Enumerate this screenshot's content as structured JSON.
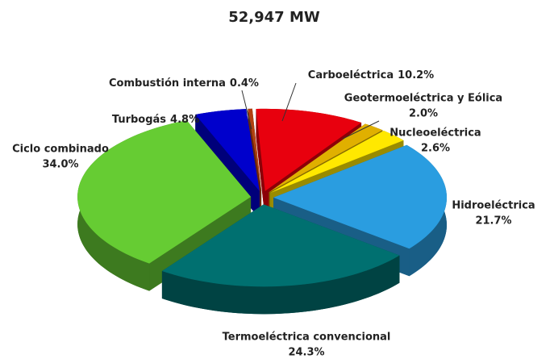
{
  "chart_data": {
    "type": "pie",
    "title": "52,947 MW",
    "categories": [
      "Carboeléctrica",
      "Geotermoeléctrica y Eólica",
      "Nucleoeléctrica",
      "Hidroeléctrica",
      "Termoeléctrica convencional",
      "Ciclo combinado",
      "Turbogás",
      "Combustión interna"
    ],
    "values": [
      10.2,
      2.0,
      2.6,
      21.7,
      24.3,
      34.0,
      4.8,
      0.4
    ],
    "value_labels": [
      "10.2%",
      "2.0%",
      "2.6%",
      "21.7%",
      "24.3%",
      "34.0%",
      "4.8%",
      "0.4%"
    ],
    "colors": [
      "#e8000e",
      "#e0b000",
      "#ffe800",
      "#2a9de0",
      "#007070",
      "#66cc33",
      "#0000cc",
      "#b04010"
    ]
  }
}
